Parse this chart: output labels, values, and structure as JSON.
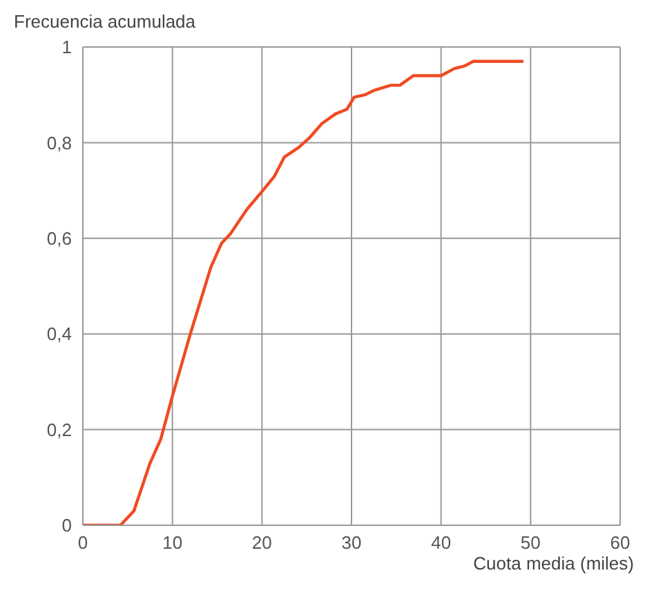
{
  "chart_data": {
    "type": "line",
    "ylabel": "Frecuencia acumulada",
    "xlabel": "Cuota media (miles)",
    "xlim": [
      0,
      60
    ],
    "xticks": [
      0,
      10,
      20,
      30,
      40,
      50,
      60
    ],
    "ylim": [
      0,
      1
    ],
    "yticks": [
      0,
      {
        "value": 0.2,
        "label": "0,2"
      },
      {
        "value": 0.4,
        "label": "0,4"
      },
      {
        "value": 0.6,
        "label": "0,6"
      },
      {
        "value": 0.8,
        "label": "0,8"
      },
      1
    ],
    "grid": true,
    "marker": "none",
    "line_style": "solid",
    "series": [
      {
        "color": "#f04a23",
        "x": [
          0,
          4.2,
          5.7,
          7.5,
          8.7,
          10,
          12,
          14.3,
          15.5,
          16.5,
          18.3,
          20.1,
          21.4,
          22.5,
          24.1,
          25.3,
          26.7,
          28.2,
          29.5,
          30.3,
          31.5,
          32.6,
          34.4,
          35.4,
          36.9,
          40,
          41.5,
          42.6,
          43.6,
          49.2
        ],
        "values": [
          0,
          0,
          0.03,
          0.13,
          0.18,
          0.27,
          0.4,
          0.54,
          0.59,
          0.61,
          0.66,
          0.7,
          0.73,
          0.77,
          0.79,
          0.81,
          0.84,
          0.86,
          0.87,
          0.895,
          0.9,
          0.91,
          0.92,
          0.92,
          0.94,
          0.94,
          0.955,
          0.96,
          0.97,
          0.97
        ]
      }
    ]
  }
}
